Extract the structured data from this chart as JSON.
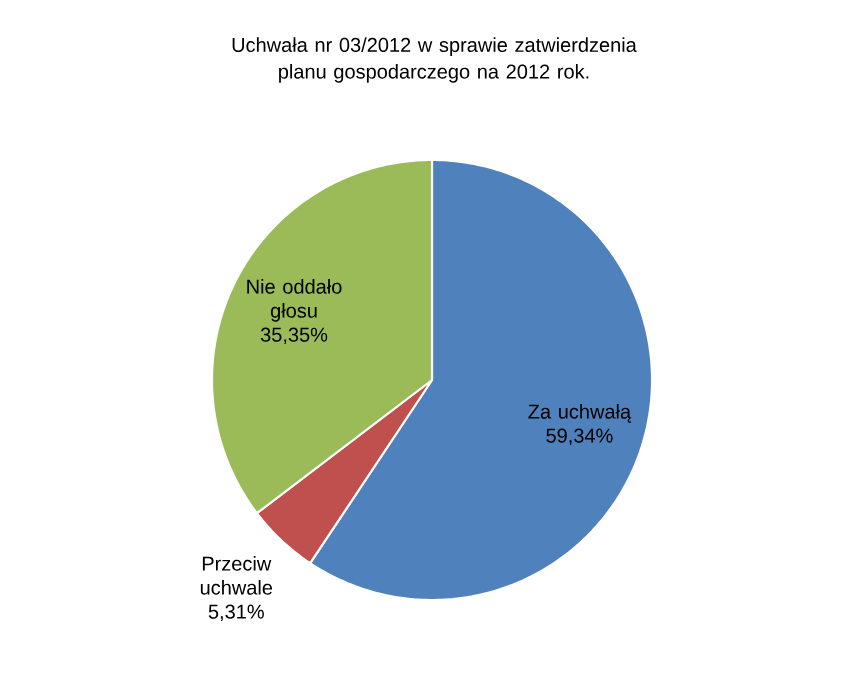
{
  "chart_data": {
    "type": "pie",
    "title": "Uchwała nr 03/2012 w sprawie zatwierdzenia  planu gospodarczego na 2012 rok.",
    "categories": [
      "Za uchwałą",
      "Przeciw uchwale",
      "Nie oddało głosu"
    ],
    "values": [
      59.34,
      5.31,
      35.35
    ],
    "value_labels": [
      "59,34%",
      "5,31%",
      "35,35%"
    ],
    "colors": [
      "#4f81bd",
      "#c0504d",
      "#9bbb59"
    ]
  }
}
